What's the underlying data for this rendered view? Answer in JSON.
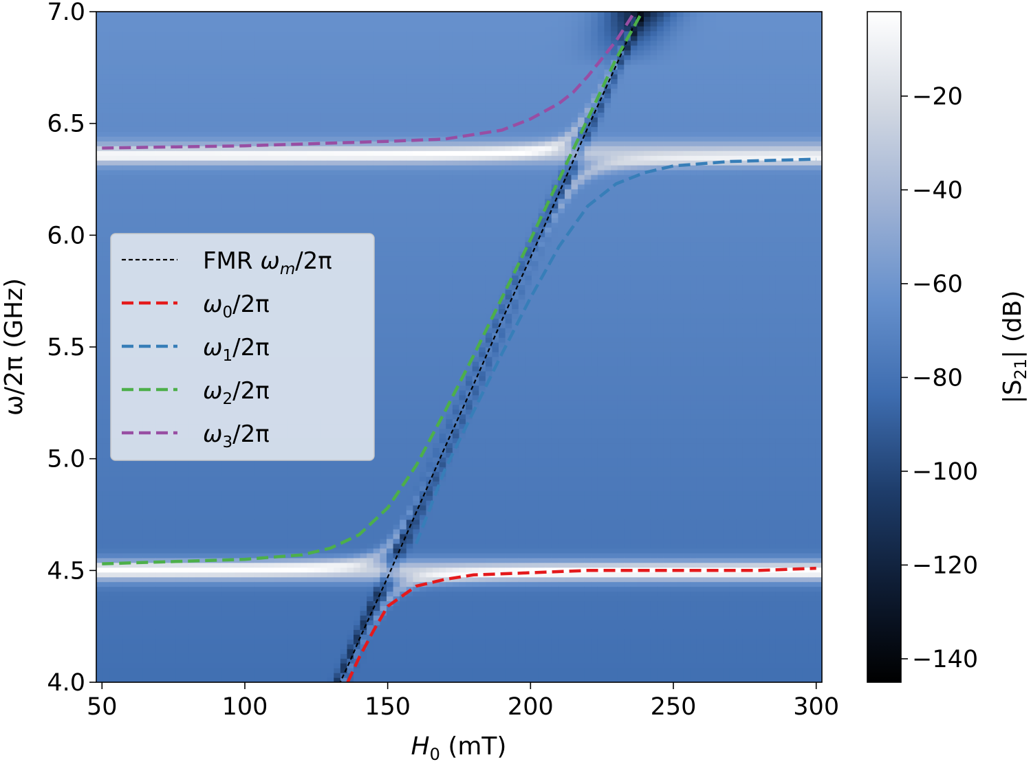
{
  "chart_data": {
    "type": "heatmap",
    "xlabel": "H",
    "xlabel_sub": "0",
    "xlabel_unit": " (mT)",
    "ylabel": "ω/2π (GHz)",
    "colorbar_label": "|S",
    "colorbar_label_sub": "21",
    "colorbar_label_unit": "| (dB)",
    "xlim": [
      48,
      302
    ],
    "ylim": [
      4.0,
      7.0
    ],
    "clim": [
      -145,
      -2
    ],
    "colormap": [
      "#000000",
      "#0e1c33",
      "#1e3d6b",
      "#3e6db0",
      "#6690cc",
      "#9fb2d4",
      "#d2d8e2",
      "#ffffff"
    ],
    "background_level_db": -72,
    "x_ticks": [
      50,
      100,
      150,
      200,
      250,
      300
    ],
    "x_tick_labels": [
      "50",
      "100",
      "150",
      "200",
      "250",
      "300"
    ],
    "y_ticks": [
      4.0,
      4.5,
      5.0,
      5.5,
      6.0,
      6.5,
      7.0
    ],
    "y_tick_labels": [
      "4.0",
      "4.5",
      "5.0",
      "5.5",
      "6.0",
      "6.5",
      "7.0"
    ],
    "colorbar_ticks": [
      -140,
      -120,
      -100,
      -80,
      -60,
      -40,
      -20
    ],
    "colorbar_tick_labels": [
      "−140",
      "−120",
      "−100",
      "−80",
      "−60",
      "−40",
      "−20"
    ],
    "fmr": {
      "slope_ghz_per_mt": 0.0286,
      "intercept_ghz": 0.184
    },
    "uncoupled_modes_ghz": [
      4.5,
      6.35
    ],
    "coupling_g_ghz": 0.12,
    "cavity_bands": [
      {
        "center_ghz": 4.5,
        "peak_db": -20,
        "width_ghz": 0.05
      },
      {
        "center_ghz": 6.37,
        "peak_db": -35,
        "width_ghz": 0.05
      }
    ],
    "series": [
      {
        "name": "FMR ω_m/2π",
        "color": "#000000",
        "style": "dotted",
        "x": [
          133,
          137,
          140,
          150,
          160,
          170,
          180,
          190,
          200,
          210,
          220,
          230,
          240,
          241
        ],
        "y": [
          3.99,
          4.1,
          4.19,
          4.47,
          4.76,
          5.05,
          5.33,
          5.62,
          5.9,
          6.19,
          6.48,
          6.76,
          7.05,
          7.08
        ]
      },
      {
        "name": "ω0/2π",
        "color": "#e41a1c",
        "style": "dashed",
        "x": [
          136,
          140,
          145,
          150,
          160,
          170,
          180,
          200,
          220,
          250,
          280,
          300
        ],
        "y": [
          4.0,
          4.11,
          4.23,
          4.34,
          4.43,
          4.46,
          4.48,
          4.49,
          4.5,
          4.5,
          4.5,
          4.51
        ]
      },
      {
        "name": "ω1/2π",
        "color": "#377eb8",
        "style": "dashed",
        "x": [
          160,
          170,
          180,
          190,
          200,
          210,
          220,
          230,
          240,
          250,
          270,
          300
        ],
        "y": [
          4.62,
          4.95,
          5.21,
          5.47,
          5.72,
          5.95,
          6.13,
          6.23,
          6.28,
          6.31,
          6.33,
          6.34
        ]
      },
      {
        "name": "ω2/2π",
        "color": "#4daf4a",
        "style": "dashed",
        "x": [
          50,
          100,
          120,
          130,
          140,
          150,
          160,
          170,
          180,
          190,
          200,
          210,
          220,
          230,
          240,
          241
        ],
        "y": [
          4.53,
          4.55,
          4.57,
          4.6,
          4.66,
          4.78,
          4.97,
          5.21,
          5.46,
          5.72,
          5.98,
          6.25,
          6.52,
          6.79,
          7.02,
          7.04
        ]
      },
      {
        "name": "ω3/2π",
        "color": "#984ea3",
        "style": "dashed",
        "x": [
          50,
          100,
          150,
          170,
          180,
          190,
          200,
          210,
          215,
          220,
          225,
          230,
          235,
          237
        ],
        "y": [
          6.39,
          6.4,
          6.42,
          6.43,
          6.45,
          6.47,
          6.52,
          6.59,
          6.64,
          6.71,
          6.79,
          6.87,
          6.97,
          7.01
        ]
      }
    ],
    "legend": {
      "placement": "center-left",
      "entries": [
        {
          "main": "FMR ω",
          "sub": "m",
          "tail": "/2π",
          "color": "#000000",
          "style": "dotted"
        },
        {
          "main": "ω",
          "sub": "0",
          "tail": "/2π",
          "color": "#e41a1c",
          "style": "dashed"
        },
        {
          "main": "ω",
          "sub": "1",
          "tail": "/2π",
          "color": "#377eb8",
          "style": "dashed"
        },
        {
          "main": "ω",
          "sub": "2",
          "tail": "/2π",
          "color": "#4daf4a",
          "style": "dashed"
        },
        {
          "main": "ω",
          "sub": "3",
          "tail": "/2π",
          "color": "#984ea3",
          "style": "dashed"
        }
      ]
    }
  }
}
